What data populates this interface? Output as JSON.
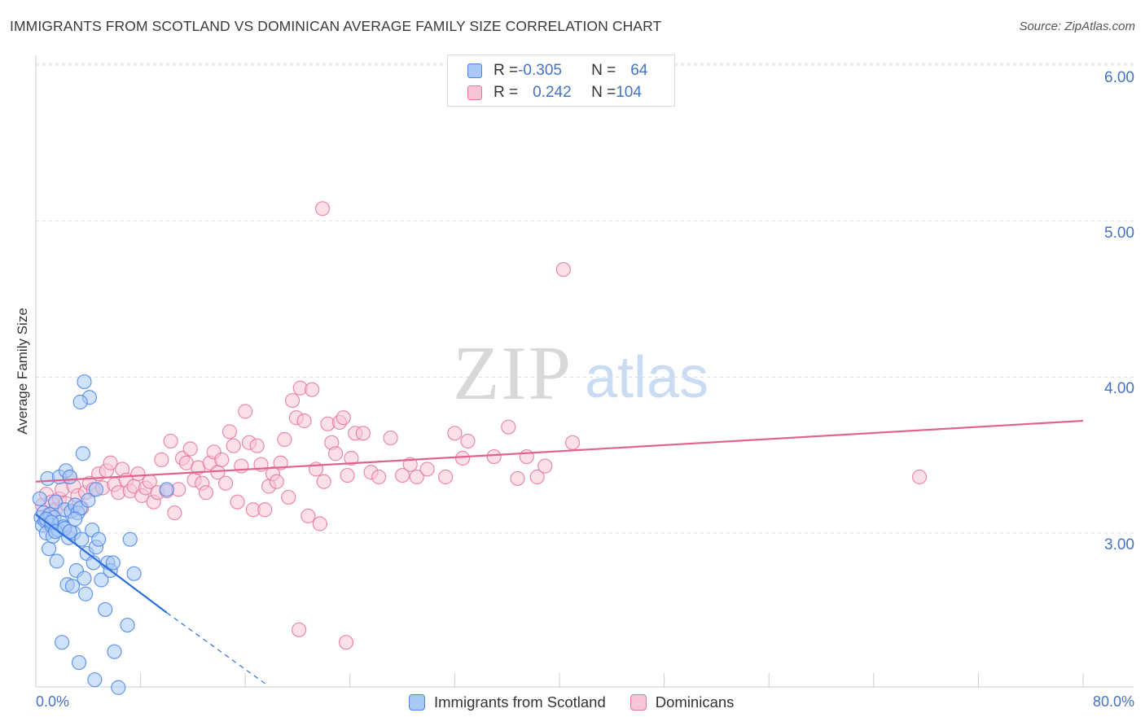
{
  "title": "IMMIGRANTS FROM SCOTLAND VS DOMINICAN AVERAGE FAMILY SIZE CORRELATION CHART",
  "source": "Source: ZipAtlas.com",
  "watermark": {
    "zip": "ZIP",
    "atlas": "atlas"
  },
  "colors": {
    "blue": "#4a86e8",
    "blue_fill": "#a9c8f5",
    "blue_line": "#2a6fdb",
    "pink": "#e8769a",
    "pink_fill": "#f7c6d6",
    "pink_line": "#e0628d",
    "tick_text": "#4472c4",
    "grid": "#dddddd"
  },
  "legend": {
    "row1": {
      "r_label": "R = ",
      "r_value": "-0.305",
      "n_label": "N = ",
      "n_value": "64"
    },
    "row2": {
      "r_label": "R = ",
      "r_value": "0.242",
      "n_label": "N = ",
      "n_value": "104"
    }
  },
  "bottom_legend": {
    "series1": "Immigrants from Scotland",
    "series2": "Dominicans"
  },
  "chart_data": {
    "type": "scatter",
    "title": "IMMIGRANTS FROM SCOTLAND VS DOMINICAN AVERAGE FAMILY SIZE CORRELATION CHART",
    "xlabel": "",
    "ylabel": "Average Family Size",
    "xlim": [
      0,
      80
    ],
    "ylim": [
      2.0,
      6.2
    ],
    "x_tick_labels": {
      "min": "0.0%",
      "max": "80.0%"
    },
    "y_ticks": [
      3.0,
      4.0,
      5.0,
      6.0
    ],
    "y_tick_labels": [
      "3.00",
      "4.00",
      "5.00",
      "6.00"
    ],
    "grid": true,
    "series": [
      {
        "name": "Immigrants from Scotland",
        "r": -0.305,
        "n": 64,
        "trend": {
          "x0": 0,
          "y0": 3.12,
          "x1": 10,
          "y1": 2.49,
          "dash_x1": 17.6,
          "dash_y1": 2.03
        },
        "points": [
          [
            0.3,
            3.22
          ],
          [
            0.4,
            3.1
          ],
          [
            0.5,
            3.05
          ],
          [
            0.6,
            3.13
          ],
          [
            0.7,
            3.08
          ],
          [
            0.8,
            3.0
          ],
          [
            0.9,
            3.35
          ],
          [
            1.0,
            2.9
          ],
          [
            1.1,
            3.12
          ],
          [
            1.2,
            3.05
          ],
          [
            1.3,
            2.98
          ],
          [
            1.4,
            3.1
          ],
          [
            1.5,
            3.2
          ],
          [
            1.6,
            2.82
          ],
          [
            1.7,
            3.02
          ],
          [
            1.8,
            3.36
          ],
          [
            1.9,
            3.07
          ],
          [
            2.0,
            2.3
          ],
          [
            2.1,
            3.04
          ],
          [
            2.2,
            3.15
          ],
          [
            2.3,
            3.4
          ],
          [
            2.4,
            2.67
          ],
          [
            2.5,
            2.97
          ],
          [
            2.6,
            3.36
          ],
          [
            2.7,
            3.14
          ],
          [
            2.8,
            2.66
          ],
          [
            2.9,
            3.0
          ],
          [
            3.0,
            3.18
          ],
          [
            3.1,
            2.76
          ],
          [
            3.2,
            3.13
          ],
          [
            3.3,
            2.17
          ],
          [
            3.4,
            3.16
          ],
          [
            3.5,
            2.96
          ],
          [
            3.6,
            3.51
          ],
          [
            3.7,
            2.71
          ],
          [
            3.8,
            2.61
          ],
          [
            3.9,
            2.87
          ],
          [
            4.0,
            3.21
          ],
          [
            4.1,
            3.87
          ],
          [
            4.3,
            3.02
          ],
          [
            4.4,
            2.81
          ],
          [
            4.5,
            2.06
          ],
          [
            4.6,
            2.91
          ],
          [
            4.8,
            2.96
          ],
          [
            5.0,
            2.7
          ],
          [
            5.3,
            2.51
          ],
          [
            5.5,
            2.81
          ],
          [
            5.7,
            2.76
          ],
          [
            5.9,
            2.81
          ],
          [
            4.6,
            3.28
          ],
          [
            3.7,
            3.97
          ],
          [
            3.4,
            3.84
          ],
          [
            0.8,
            3.09
          ],
          [
            1.2,
            3.07
          ],
          [
            1.5,
            3.01
          ],
          [
            2.2,
            3.03
          ],
          [
            2.6,
            3.01
          ],
          [
            3.0,
            3.09
          ],
          [
            6.0,
            2.24
          ],
          [
            6.3,
            2.01
          ],
          [
            7.0,
            2.41
          ],
          [
            7.2,
            2.96
          ],
          [
            7.5,
            2.74
          ],
          [
            10.0,
            3.28
          ]
        ]
      },
      {
        "name": "Dominicans",
        "r": 0.242,
        "n": 104,
        "trend": {
          "x0": 0,
          "y0": 3.33,
          "x1": 80,
          "y1": 3.72
        },
        "points": [
          [
            0.5,
            3.18
          ],
          [
            0.8,
            3.25
          ],
          [
            1.0,
            3.12
          ],
          [
            1.2,
            3.2
          ],
          [
            1.5,
            3.15
          ],
          [
            1.8,
            3.22
          ],
          [
            2.0,
            3.28
          ],
          [
            2.3,
            3.19
          ],
          [
            2.6,
            3.36
          ],
          [
            2.9,
            3.3
          ],
          [
            3.2,
            3.24
          ],
          [
            3.5,
            3.16
          ],
          [
            3.8,
            3.26
          ],
          [
            4.1,
            3.32
          ],
          [
            4.4,
            3.28
          ],
          [
            4.8,
            3.38
          ],
          [
            5.1,
            3.29
          ],
          [
            5.4,
            3.4
          ],
          [
            5.7,
            3.45
          ],
          [
            6.0,
            3.31
          ],
          [
            6.3,
            3.26
          ],
          [
            6.6,
            3.41
          ],
          [
            6.9,
            3.34
          ],
          [
            7.2,
            3.27
          ],
          [
            7.5,
            3.3
          ],
          [
            7.8,
            3.38
          ],
          [
            8.1,
            3.24
          ],
          [
            8.4,
            3.29
          ],
          [
            8.7,
            3.33
          ],
          [
            9.0,
            3.2
          ],
          [
            9.3,
            3.26
          ],
          [
            9.6,
            3.47
          ],
          [
            10.0,
            3.27
          ],
          [
            10.3,
            3.59
          ],
          [
            10.6,
            3.13
          ],
          [
            10.9,
            3.28
          ],
          [
            11.2,
            3.48
          ],
          [
            11.5,
            3.45
          ],
          [
            11.8,
            3.54
          ],
          [
            12.1,
            3.34
          ],
          [
            12.4,
            3.42
          ],
          [
            12.7,
            3.32
          ],
          [
            13.0,
            3.26
          ],
          [
            13.3,
            3.45
          ],
          [
            13.6,
            3.52
          ],
          [
            13.9,
            3.39
          ],
          [
            14.2,
            3.47
          ],
          [
            14.5,
            3.32
          ],
          [
            14.8,
            3.65
          ],
          [
            15.1,
            3.56
          ],
          [
            15.4,
            3.2
          ],
          [
            15.7,
            3.43
          ],
          [
            16.0,
            3.78
          ],
          [
            16.3,
            3.58
          ],
          [
            16.6,
            3.15
          ],
          [
            16.9,
            3.56
          ],
          [
            17.2,
            3.44
          ],
          [
            17.5,
            3.15
          ],
          [
            17.8,
            3.3
          ],
          [
            18.1,
            3.38
          ],
          [
            18.4,
            3.33
          ],
          [
            18.7,
            3.45
          ],
          [
            19.0,
            3.6
          ],
          [
            19.3,
            3.23
          ],
          [
            19.6,
            3.85
          ],
          [
            19.9,
            3.74
          ],
          [
            20.2,
            3.93
          ],
          [
            20.5,
            3.72
          ],
          [
            20.8,
            3.11
          ],
          [
            21.1,
            3.92
          ],
          [
            21.4,
            3.41
          ],
          [
            21.7,
            3.06
          ],
          [
            22.0,
            3.33
          ],
          [
            22.3,
            3.7
          ],
          [
            22.6,
            3.58
          ],
          [
            22.9,
            3.51
          ],
          [
            23.2,
            3.71
          ],
          [
            23.5,
            3.74
          ],
          [
            23.8,
            3.37
          ],
          [
            24.1,
            3.48
          ],
          [
            24.4,
            3.64
          ],
          [
            25.0,
            3.64
          ],
          [
            25.6,
            3.39
          ],
          [
            26.2,
            3.36
          ],
          [
            27.1,
            3.61
          ],
          [
            28.0,
            3.37
          ],
          [
            28.6,
            3.44
          ],
          [
            29.1,
            3.36
          ],
          [
            29.9,
            3.41
          ],
          [
            31.3,
            3.36
          ],
          [
            32.0,
            3.64
          ],
          [
            32.6,
            3.48
          ],
          [
            33.0,
            3.59
          ],
          [
            35.0,
            3.49
          ],
          [
            36.1,
            3.68
          ],
          [
            36.8,
            3.35
          ],
          [
            37.5,
            3.49
          ],
          [
            38.3,
            3.36
          ],
          [
            38.9,
            3.43
          ],
          [
            41.0,
            3.58
          ],
          [
            67.5,
            3.36
          ],
          [
            21.9,
            5.08
          ],
          [
            40.3,
            4.69
          ],
          [
            23.7,
            2.3
          ],
          [
            20.1,
            2.38
          ]
        ]
      }
    ]
  }
}
